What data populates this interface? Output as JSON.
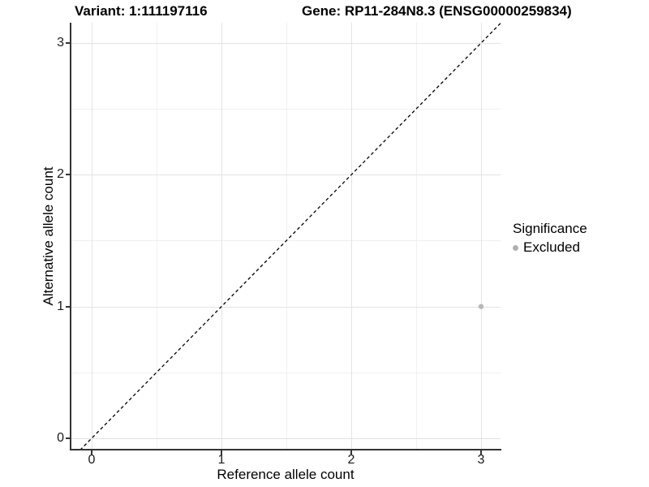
{
  "chart_data": {
    "type": "scatter",
    "titles": {
      "left": "Variant: 1:111197116",
      "right": "Gene: RP11-284N8.3 (ENSG00000259834)"
    },
    "xlabel": "Reference allele count",
    "ylabel": "Alternative allele count",
    "x_ticks": [
      "0",
      "1",
      "2",
      "3"
    ],
    "y_ticks_top_to_bottom": [
      "3",
      "2",
      "1",
      "0"
    ],
    "xlim": [
      -0.16,
      3.16
    ],
    "ylim": [
      -0.09,
      3.16
    ],
    "grid": "major gridlines at integers, minor gridlines at halves, white background",
    "reference_line": {
      "type": "identity y = x",
      "style": "dashed",
      "color": "#000000"
    },
    "series": [
      {
        "name": "Excluded",
        "color": "#b8b8b8",
        "points": [
          {
            "x": 3,
            "y": 1
          }
        ]
      }
    ],
    "legend": {
      "title": "Significance",
      "position": "right",
      "items": [
        {
          "label": "Excluded",
          "color": "#b0b0b0"
        }
      ]
    }
  },
  "colors": {
    "background": "#ffffff",
    "axis_line": "#333333",
    "grid_major": "#e3e3e3",
    "grid_minor": "#f0f0f0",
    "text": "#000000"
  }
}
